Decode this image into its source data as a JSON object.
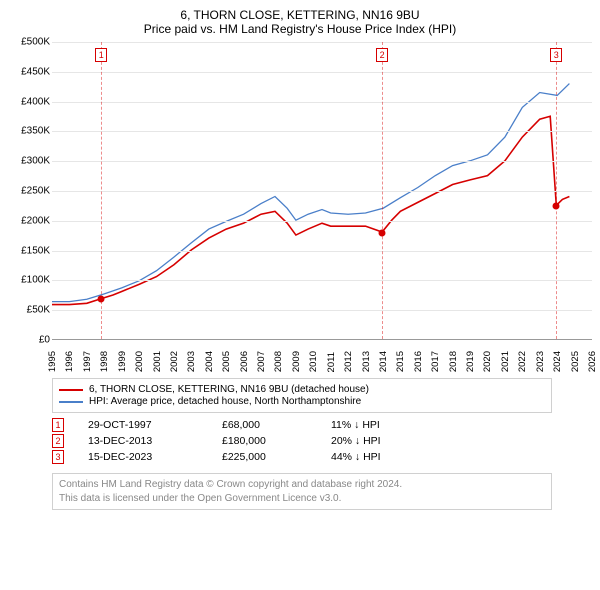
{
  "title_line1": "6, THORN CLOSE, KETTERING, NN16 9BU",
  "title_line2": "Price paid vs. HM Land Registry's House Price Index (HPI)",
  "title_fontsize": 12,
  "chart": {
    "type": "line",
    "ylim": [
      0,
      500000
    ],
    "ytick_step": 50000,
    "y_ticks": [
      "£0",
      "£50K",
      "£100K",
      "£150K",
      "£200K",
      "£250K",
      "£300K",
      "£350K",
      "£400K",
      "£450K",
      "£500K"
    ],
    "xlim": [
      1995,
      2026
    ],
    "x_ticks": [
      1995,
      1996,
      1997,
      1998,
      1999,
      2000,
      2001,
      2002,
      2003,
      2004,
      2005,
      2006,
      2007,
      2008,
      2009,
      2010,
      2011,
      2012,
      2013,
      2014,
      2015,
      2016,
      2017,
      2018,
      2019,
      2020,
      2021,
      2022,
      2023,
      2024,
      2025,
      2026
    ],
    "grid_color": "#e6e6e6",
    "background_color": "#ffffff",
    "series": [
      {
        "name": "6, THORN CLOSE, KETTERING, NN16 9BU (detached house)",
        "color": "#d60000",
        "line_width": 1.6,
        "points": [
          [
            1995.0,
            58000
          ],
          [
            1996.0,
            58000
          ],
          [
            1997.0,
            60000
          ],
          [
            1997.83,
            68000
          ],
          [
            1998.5,
            74000
          ],
          [
            1999.0,
            80000
          ],
          [
            2000.0,
            92000
          ],
          [
            2001.0,
            105000
          ],
          [
            2002.0,
            125000
          ],
          [
            2003.0,
            150000
          ],
          [
            2004.0,
            170000
          ],
          [
            2005.0,
            185000
          ],
          [
            2006.0,
            195000
          ],
          [
            2007.0,
            210000
          ],
          [
            2007.8,
            215000
          ],
          [
            2008.5,
            195000
          ],
          [
            2009.0,
            175000
          ],
          [
            2009.7,
            185000
          ],
          [
            2010.5,
            195000
          ],
          [
            2011.0,
            190000
          ],
          [
            2012.0,
            190000
          ],
          [
            2013.0,
            190000
          ],
          [
            2013.95,
            180000
          ],
          [
            2014.5,
            200000
          ],
          [
            2015.0,
            215000
          ],
          [
            2016.0,
            230000
          ],
          [
            2017.0,
            245000
          ],
          [
            2018.0,
            260000
          ],
          [
            2019.0,
            268000
          ],
          [
            2020.0,
            275000
          ],
          [
            2021.0,
            300000
          ],
          [
            2022.0,
            340000
          ],
          [
            2023.0,
            370000
          ],
          [
            2023.6,
            375000
          ],
          [
            2023.95,
            225000
          ],
          [
            2024.3,
            235000
          ],
          [
            2024.7,
            240000
          ]
        ]
      },
      {
        "name": "HPI: Average price, detached house, North Northamptonshire",
        "color": "#4a7fc9",
        "line_width": 1.3,
        "points": [
          [
            1995.0,
            63000
          ],
          [
            1996.0,
            63000
          ],
          [
            1997.0,
            67000
          ],
          [
            1998.0,
            76000
          ],
          [
            1999.0,
            86000
          ],
          [
            2000.0,
            98000
          ],
          [
            2001.0,
            115000
          ],
          [
            2002.0,
            138000
          ],
          [
            2003.0,
            162000
          ],
          [
            2004.0,
            185000
          ],
          [
            2005.0,
            198000
          ],
          [
            2006.0,
            210000
          ],
          [
            2007.0,
            228000
          ],
          [
            2007.8,
            240000
          ],
          [
            2008.5,
            220000
          ],
          [
            2009.0,
            200000
          ],
          [
            2009.7,
            210000
          ],
          [
            2010.5,
            218000
          ],
          [
            2011.0,
            212000
          ],
          [
            2012.0,
            210000
          ],
          [
            2013.0,
            212000
          ],
          [
            2014.0,
            220000
          ],
          [
            2015.0,
            238000
          ],
          [
            2016.0,
            255000
          ],
          [
            2017.0,
            275000
          ],
          [
            2018.0,
            292000
          ],
          [
            2019.0,
            300000
          ],
          [
            2020.0,
            310000
          ],
          [
            2021.0,
            340000
          ],
          [
            2022.0,
            390000
          ],
          [
            2023.0,
            415000
          ],
          [
            2024.0,
            410000
          ],
          [
            2024.7,
            430000
          ]
        ]
      }
    ],
    "sale_markers": [
      {
        "id": "1",
        "x": 1997.83,
        "y": 68000,
        "color": "#d60000"
      },
      {
        "id": "2",
        "x": 2013.95,
        "y": 180000,
        "color": "#d60000"
      },
      {
        "id": "3",
        "x": 2023.95,
        "y": 225000,
        "color": "#d60000"
      }
    ],
    "marker_vline_color_rgba": "rgba(214,0,0,0.45)"
  },
  "legend": {
    "items": [
      {
        "label": "6, THORN CLOSE, KETTERING, NN16 9BU (detached house)",
        "color": "#d60000"
      },
      {
        "label": "HPI: Average price, detached house, North Northamptonshire",
        "color": "#4a7fc9"
      }
    ]
  },
  "sales_table": {
    "rows": [
      {
        "id": "1",
        "date": "29-OCT-1997",
        "price": "£68,000",
        "delta": "11% ↓ HPI",
        "color": "#d60000"
      },
      {
        "id": "2",
        "date": "13-DEC-2013",
        "price": "£180,000",
        "delta": "20% ↓ HPI",
        "color": "#d60000"
      },
      {
        "id": "3",
        "date": "15-DEC-2023",
        "price": "£225,000",
        "delta": "44% ↓ HPI",
        "color": "#d60000"
      }
    ]
  },
  "footer": {
    "line1": "Contains HM Land Registry data © Crown copyright and database right 2024.",
    "line2": "This data is licensed under the Open Government Licence v3.0.",
    "color": "#888888"
  }
}
